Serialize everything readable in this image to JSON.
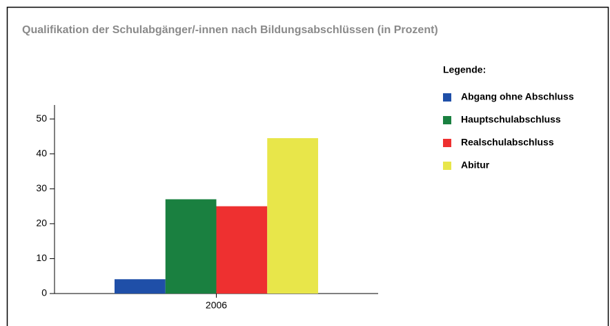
{
  "chart_data": {
    "type": "bar",
    "title": "Qualifikation der Schulabgänger/-innen nach Bildungsabschlüssen (in Prozent)",
    "legend_title": "Legende:",
    "categories": [
      "2006"
    ],
    "series": [
      {
        "name": "Abgang ohne Abschluss",
        "color": "#1f4fa8",
        "values": [
          4.1
        ]
      },
      {
        "name": "Hauptschulabschluss",
        "color": "#1a8040",
        "values": [
          27
        ]
      },
      {
        "name": "Realschulabschluss",
        "color": "#ee3030",
        "values": [
          25
        ]
      },
      {
        "name": "Abitur",
        "color": "#e8e64a",
        "values": [
          44.5
        ]
      }
    ],
    "ylim": [
      0,
      54
    ],
    "yticks": [
      0,
      10,
      20,
      30,
      40,
      50
    ],
    "legend": "right"
  }
}
